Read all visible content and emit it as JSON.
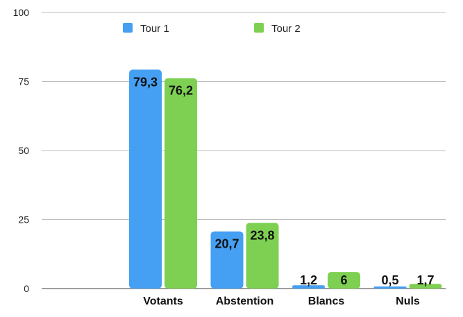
{
  "chart_data": {
    "type": "bar",
    "categories": [
      "Votants",
      "Abstention",
      "Blancs",
      "Nuls"
    ],
    "series": [
      {
        "name": "Tour 1",
        "values": [
          79.3,
          20.7,
          1.2,
          0.5
        ],
        "labels": [
          "79,3",
          "20,7",
          "1,2",
          "0,5"
        ],
        "color": "#459ff3"
      },
      {
        "name": "Tour 2",
        "values": [
          76.2,
          23.8,
          6,
          1.7
        ],
        "labels": [
          "76,2",
          "23,8",
          "6",
          "1,7"
        ],
        "color": "#7ed053"
      }
    ],
    "yticks": [
      0,
      25,
      50,
      75,
      100
    ],
    "ylim": [
      0,
      100
    ],
    "grid": true,
    "legend": "top"
  }
}
